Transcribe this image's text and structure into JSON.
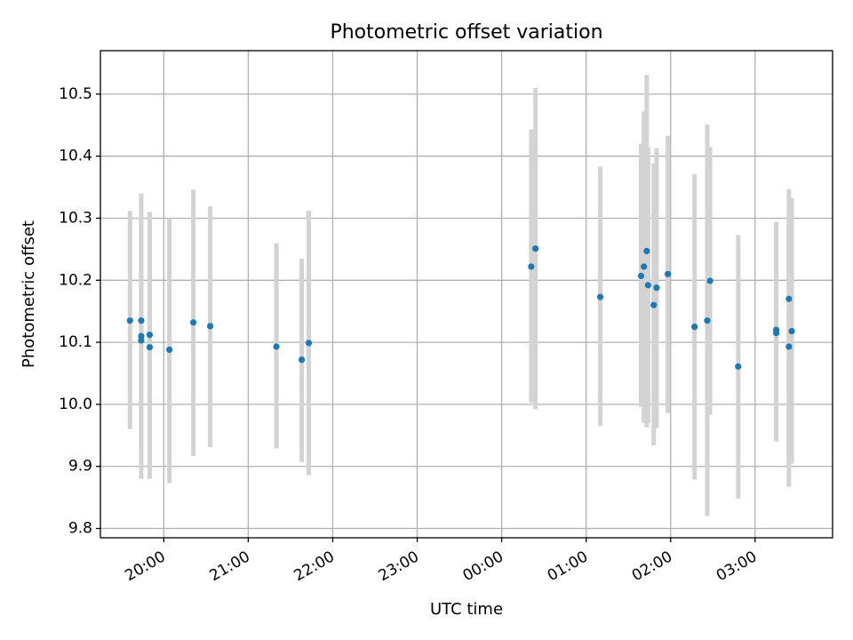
{
  "chart_data": {
    "type": "scatter",
    "title": "Photometric offset variation",
    "xlabel": "UTC time",
    "ylabel": "Photometric offset",
    "xlim": [
      "19:15",
      "03:55"
    ],
    "ylim": [
      9.785,
      10.57
    ],
    "x_ticks": [
      "20:00",
      "21:00",
      "22:00",
      "23:00",
      "00:00",
      "01:00",
      "02:00",
      "03:00"
    ],
    "y_ticks": [
      "9.8",
      "9.9",
      "10.0",
      "10.1",
      "10.2",
      "10.3",
      "10.4",
      "10.5"
    ],
    "grid": true,
    "errorbar_color": "#d3d3d3",
    "marker_color": "#1f77b4",
    "series": [
      {
        "points": [
          {
            "x": "19:36",
            "y": 10.135,
            "ylow": 9.96,
            "yhigh": 10.312
          },
          {
            "x": "19:44",
            "y": 10.135,
            "ylow": 9.93,
            "yhigh": 10.34
          },
          {
            "x": "19:44",
            "y": 10.11,
            "ylow": 9.88,
            "yhigh": 10.29
          },
          {
            "x": "19:44",
            "y": 10.103,
            "ylow": 9.9,
            "yhigh": 10.3
          },
          {
            "x": "19:50",
            "y": 10.112,
            "ylow": 9.9,
            "yhigh": 10.31
          },
          {
            "x": "19:50",
            "y": 10.092,
            "ylow": 9.88,
            "yhigh": 10.3
          },
          {
            "x": "20:04",
            "y": 10.088,
            "ylow": 9.873,
            "yhigh": 10.3
          },
          {
            "x": "20:21",
            "y": 10.132,
            "ylow": 9.917,
            "yhigh": 10.346
          },
          {
            "x": "20:33",
            "y": 10.126,
            "ylow": 9.931,
            "yhigh": 10.319
          },
          {
            "x": "21:20",
            "y": 10.093,
            "ylow": 9.929,
            "yhigh": 10.26
          },
          {
            "x": "21:38",
            "y": 10.072,
            "ylow": 9.907,
            "yhigh": 10.235
          },
          {
            "x": "21:43",
            "y": 10.099,
            "ylow": 9.886,
            "yhigh": 10.312
          },
          {
            "x": "00:21",
            "y": 10.222,
            "ylow": 10.003,
            "yhigh": 10.443
          },
          {
            "x": "00:24",
            "y": 10.251,
            "ylow": 9.992,
            "yhigh": 10.51
          },
          {
            "x": "01:10",
            "y": 10.173,
            "ylow": 9.965,
            "yhigh": 10.383
          },
          {
            "x": "01:39",
            "y": 10.207,
            "ylow": 9.996,
            "yhigh": 10.42
          },
          {
            "x": "01:41",
            "y": 10.222,
            "ylow": 9.97,
            "yhigh": 10.472
          },
          {
            "x": "01:43",
            "y": 10.247,
            "ylow": 9.963,
            "yhigh": 10.531
          },
          {
            "x": "01:44",
            "y": 10.192,
            "ylow": 9.97,
            "yhigh": 10.415
          },
          {
            "x": "01:48",
            "y": 10.16,
            "ylow": 9.934,
            "yhigh": 10.388
          },
          {
            "x": "01:50",
            "y": 10.188,
            "ylow": 9.962,
            "yhigh": 10.413
          },
          {
            "x": "01:58",
            "y": 10.21,
            "ylow": 9.986,
            "yhigh": 10.433
          },
          {
            "x": "02:17",
            "y": 10.125,
            "ylow": 9.879,
            "yhigh": 10.371
          },
          {
            "x": "02:26",
            "y": 10.135,
            "ylow": 9.82,
            "yhigh": 10.451
          },
          {
            "x": "02:28",
            "y": 10.199,
            "ylow": 9.983,
            "yhigh": 10.415
          },
          {
            "x": "02:48",
            "y": 10.061,
            "ylow": 9.848,
            "yhigh": 10.273
          },
          {
            "x": "03:15",
            "y": 10.12,
            "ylow": 9.941,
            "yhigh": 10.294
          },
          {
            "x": "03:15",
            "y": 10.115,
            "ylow": 9.94,
            "yhigh": 10.29
          },
          {
            "x": "03:24",
            "y": 10.17,
            "ylow": 9.867,
            "yhigh": 10.347
          },
          {
            "x": "03:24",
            "y": 10.093,
            "ylow": 9.9,
            "yhigh": 10.3
          },
          {
            "x": "03:26",
            "y": 10.118,
            "ylow": 9.905,
            "yhigh": 10.332
          }
        ]
      }
    ]
  }
}
